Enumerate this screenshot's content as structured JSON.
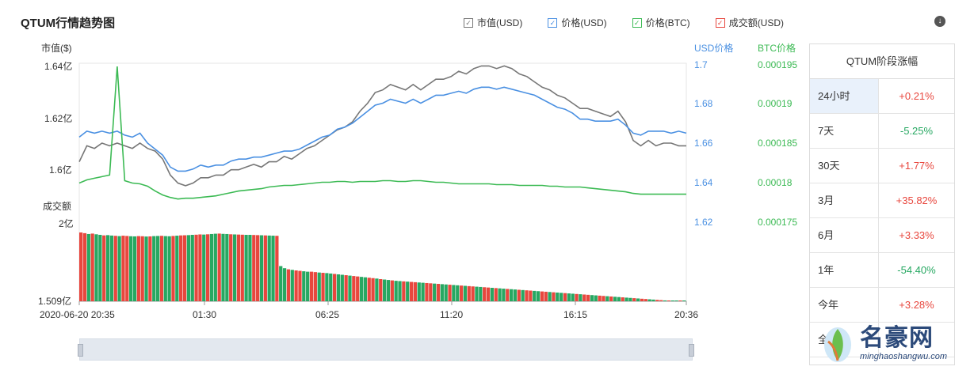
{
  "title": "QTUM行情趋势图",
  "legend": [
    {
      "label": "市值(USD)",
      "color": "#666666",
      "checked": true
    },
    {
      "label": "价格(USD)",
      "color": "#4a90e2",
      "checked": true
    },
    {
      "label": "价格(BTC)",
      "color": "#3cba54",
      "checked": true
    },
    {
      "label": "成交额(USD)",
      "color": "#e8473e",
      "checked": true
    }
  ],
  "axes": {
    "left_title": "市值($)",
    "left_ticks": [
      "1.64亿",
      "1.62亿",
      "1.6亿"
    ],
    "volume_title": "成交额",
    "volume_ticks": [
      "2亿",
      "1.509亿"
    ],
    "usd_title": "USD价格",
    "usd_ticks": [
      "1.7",
      "1.68",
      "1.66",
      "1.64",
      "1.62"
    ],
    "btc_title": "BTC价格",
    "btc_ticks": [
      "0.000195",
      "0.00019",
      "0.000185",
      "0.00018",
      "0.000175"
    ],
    "x_ticks": [
      "2020-06-20 20:35",
      "01:30",
      "06:25",
      "11:20",
      "16:15",
      "20:36"
    ]
  },
  "chart_data": {
    "type": "line",
    "x_range": [
      "2020-06-20 20:35",
      "20:36"
    ],
    "series": [
      {
        "name": "市值(USD)",
        "color": "#777777",
        "values": [
          1.605,
          1.611,
          1.61,
          1.612,
          1.611,
          1.612,
          1.611,
          1.61,
          1.612,
          1.61,
          1.609,
          1.606,
          1.6,
          1.597,
          1.596,
          1.597,
          1.599,
          1.599,
          1.6,
          1.6,
          1.602,
          1.602,
          1.603,
          1.604,
          1.603,
          1.605,
          1.605,
          1.607,
          1.606,
          1.608,
          1.61,
          1.611,
          1.613,
          1.615,
          1.617,
          1.618,
          1.62,
          1.624,
          1.627,
          1.631,
          1.632,
          1.634,
          1.633,
          1.632,
          1.634,
          1.632,
          1.634,
          1.636,
          1.636,
          1.637,
          1.639,
          1.638,
          1.64,
          1.641,
          1.641,
          1.64,
          1.641,
          1.64,
          1.638,
          1.637,
          1.635,
          1.633,
          1.632,
          1.63,
          1.629,
          1.627,
          1.625,
          1.625,
          1.624,
          1.623,
          1.622,
          1.624,
          1.62,
          1.613,
          1.611,
          1.613,
          1.611,
          1.612,
          1.612,
          1.611,
          1.611
        ]
      },
      {
        "name": "价格(USD)",
        "color": "#4a90e2",
        "values": [
          1.663,
          1.666,
          1.665,
          1.666,
          1.665,
          1.666,
          1.664,
          1.663,
          1.665,
          1.66,
          1.657,
          1.654,
          1.648,
          1.646,
          1.646,
          1.647,
          1.649,
          1.648,
          1.649,
          1.649,
          1.651,
          1.652,
          1.652,
          1.653,
          1.653,
          1.654,
          1.655,
          1.656,
          1.656,
          1.657,
          1.659,
          1.661,
          1.663,
          1.664,
          1.667,
          1.668,
          1.67,
          1.673,
          1.676,
          1.679,
          1.68,
          1.682,
          1.681,
          1.68,
          1.682,
          1.68,
          1.682,
          1.684,
          1.684,
          1.685,
          1.686,
          1.685,
          1.687,
          1.688,
          1.688,
          1.687,
          1.688,
          1.687,
          1.686,
          1.685,
          1.684,
          1.682,
          1.68,
          1.678,
          1.677,
          1.675,
          1.672,
          1.672,
          1.671,
          1.671,
          1.671,
          1.672,
          1.669,
          1.665,
          1.664,
          1.666,
          1.666,
          1.666,
          1.665,
          1.666,
          1.665
        ]
      },
      {
        "name": "价格(BTC)",
        "color": "#3cba54",
        "values": [
          0.00018,
          0.0001804,
          0.0001806,
          0.0001808,
          0.000181,
          0.0001946,
          0.0001803,
          0.00018,
          0.0001799,
          0.0001796,
          0.000179,
          0.0001785,
          0.0001782,
          0.000178,
          0.0001781,
          0.0001781,
          0.0001782,
          0.0001783,
          0.0001784,
          0.0001786,
          0.0001788,
          0.000179,
          0.0001791,
          0.0001792,
          0.0001793,
          0.0001795,
          0.0001796,
          0.0001797,
          0.0001797,
          0.0001798,
          0.0001799,
          0.00018,
          0.0001801,
          0.0001801,
          0.0001802,
          0.0001802,
          0.0001801,
          0.0001802,
          0.0001802,
          0.0001802,
          0.0001803,
          0.0001803,
          0.0001802,
          0.0001802,
          0.0001803,
          0.0001803,
          0.0001802,
          0.0001801,
          0.0001801,
          0.00018,
          0.0001799,
          0.0001799,
          0.0001799,
          0.0001799,
          0.0001799,
          0.0001798,
          0.0001798,
          0.0001798,
          0.0001797,
          0.0001797,
          0.0001797,
          0.0001797,
          0.0001796,
          0.0001796,
          0.0001795,
          0.0001795,
          0.0001795,
          0.0001794,
          0.0001793,
          0.0001792,
          0.0001791,
          0.000179,
          0.0001789,
          0.0001787,
          0.0001786,
          0.0001786,
          0.0001786,
          0.0001786,
          0.0001786,
          0.0001786,
          0.0001786
        ]
      },
      {
        "name": "成交额(USD)",
        "color": "#e8473e",
        "y_range": [
          150900000,
          200000000
        ],
        "values": [
          200000000,
          199500000,
          198900000,
          199200000,
          198700000,
          198300000,
          197900000,
          198100000,
          197800000,
          197600000,
          197400000,
          197700000,
          197500000,
          197300000,
          197200000,
          197400000,
          197300000,
          197100000,
          197200000,
          197400000,
          197500000,
          197600000,
          197400000,
          197300000,
          197500000,
          197700000,
          197900000,
          198000000,
          198100000,
          198300000,
          198400000,
          198600000,
          198500000,
          198700000,
          198900000,
          199100000,
          199200000,
          199000000,
          198900000,
          198700000,
          198600000,
          198500000,
          198400000,
          198300000,
          198300000,
          198200000,
          198100000,
          198000000,
          197900000,
          197800000,
          197700000,
          197600000,
          176000000,
          174500000,
          173700000,
          173300000,
          172900000,
          172600000,
          172300000,
          172000000,
          172000000,
          171700000,
          171400000,
          171200000,
          171000000,
          170700000,
          170400000,
          170100000,
          169800000,
          169500000,
          169200000,
          168900000,
          168600000,
          168300000,
          168000000,
          167700000,
          167400000,
          167100000,
          166700000,
          166400000,
          166100000,
          165800000,
          165500000,
          165300000,
          165100000,
          164900000,
          164700000,
          164500000,
          164300000,
          164100000,
          163900000,
          163700000,
          163500000,
          163300000,
          163100000,
          162900000,
          162700000,
          162500000,
          162300000,
          162100000,
          161900000,
          161700000,
          161500000,
          161300000,
          161100000,
          160900000,
          160700000,
          160500000,
          160300000,
          160100000,
          159900000,
          159700000,
          159500000,
          159300000,
          159100000,
          158900000,
          158700000,
          158500000,
          158300000,
          158100000,
          157900000,
          157700000,
          157500000,
          157300000,
          157100000,
          156900000,
          156700000,
          156500000,
          156300000,
          156100000,
          155900000,
          155700000,
          155500000,
          155300000,
          155100000,
          154900000,
          154700000,
          154500000,
          154300000,
          154100000,
          153900000,
          153700000,
          153500000,
          153300000,
          153100000,
          152900000,
          152700000,
          152500000,
          152300000,
          152100000,
          151900000,
          151700000,
          151500000,
          151300000,
          151100000,
          151000000,
          150950000,
          150900000
        ]
      }
    ],
    "y_left_range": [
      1.582,
      1.642
    ],
    "y_usd_range": [
      1.62,
      1.7
    ],
    "y_btc_range": [
      0.000175,
      0.000195
    ]
  },
  "side_panel": {
    "title": "QTUM阶段涨幅",
    "rows": [
      {
        "period": "24小时",
        "change": "+0.21%",
        "dir": "up"
      },
      {
        "period": "7天",
        "change": "-5.25%",
        "dir": "down"
      },
      {
        "period": "30天",
        "change": "+1.77%",
        "dir": "up"
      },
      {
        "period": "3月",
        "change": "+35.82%",
        "dir": "up"
      },
      {
        "period": "6月",
        "change": "+3.33%",
        "dir": "up"
      },
      {
        "period": "1年",
        "change": "-54.40%",
        "dir": "down"
      },
      {
        "period": "今年",
        "change": "+3.28%",
        "dir": "up"
      },
      {
        "period": "全部",
        "change": "",
        "dir": "up"
      }
    ]
  },
  "watermark": {
    "cn": "名豪网",
    "url": "minghaoshangwu.com"
  }
}
